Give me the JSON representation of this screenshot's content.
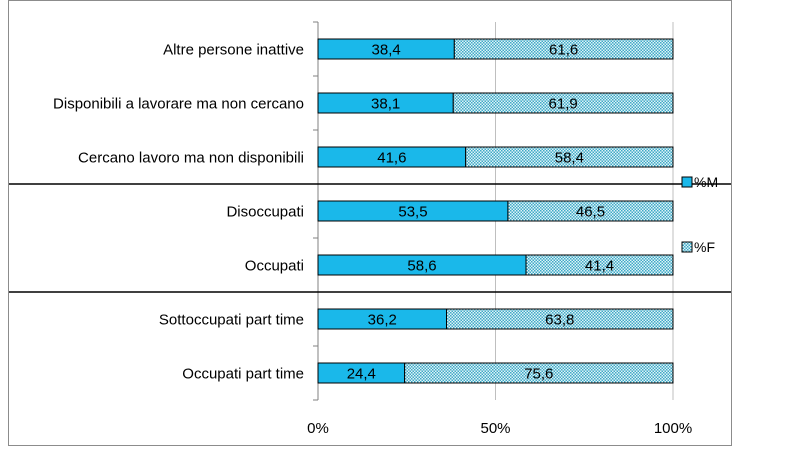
{
  "chart_data": {
    "type": "bar",
    "orientation": "horizontal",
    "stacked": "percent",
    "categories": [
      "Altre persone inattive",
      "Disponibili a lavorare ma non cercano",
      "Cercano lavoro ma non disponibili",
      "Disoccupati",
      "Occupati",
      "Sottoccupati part time",
      "Occupati part time"
    ],
    "series": [
      {
        "name": "%M",
        "values": [
          38.4,
          38.1,
          41.6,
          53.5,
          58.6,
          36.2,
          24.4
        ],
        "labels": [
          "38,4",
          "38,1",
          "41,6",
          "53,5",
          "58,6",
          "36,2",
          "24,4"
        ],
        "color": "#1ab8ea",
        "pattern": "solid"
      },
      {
        "name": "%F",
        "values": [
          61.6,
          61.9,
          58.4,
          46.5,
          41.4,
          63.8,
          75.6
        ],
        "labels": [
          "61,6",
          "61,9",
          "58,4",
          "46,5",
          "41,4",
          "63,8",
          "75,6"
        ],
        "color": "#a8dce8",
        "pattern": "dotted"
      }
    ],
    "xticks": [
      "0%",
      "50%",
      "100%"
    ],
    "xlim": [
      0,
      100
    ],
    "grid": true,
    "legend": "right",
    "group_separators_after_category": [
      "Cercano lavoro ma non disponibili",
      "Occupati"
    ]
  }
}
